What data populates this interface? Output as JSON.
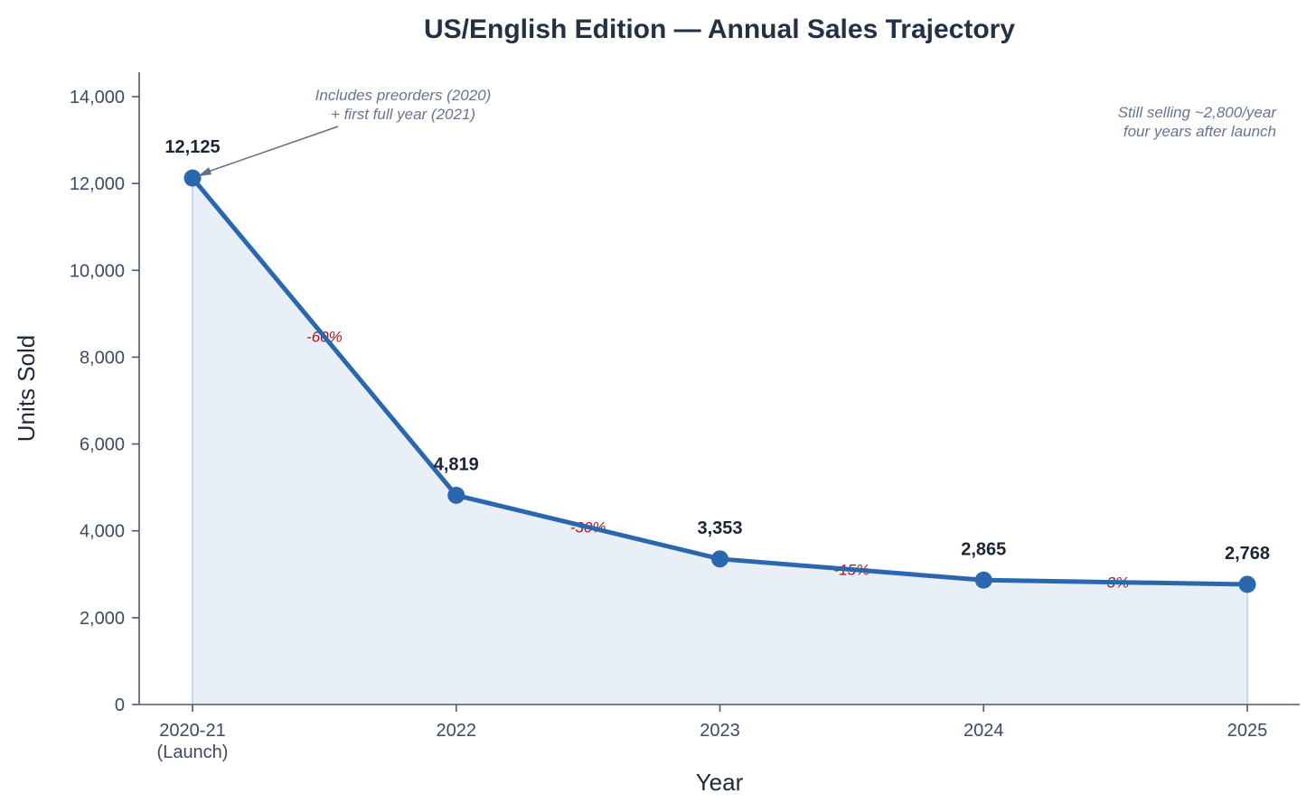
{
  "chart_data": {
    "type": "line",
    "title": "US/English Edition — Annual Sales Trajectory",
    "xlabel": "Year",
    "ylabel": "Units Sold",
    "categories": [
      [
        "2020-21",
        "(Launch)"
      ],
      [
        "2022"
      ],
      [
        "2023"
      ],
      [
        "2024"
      ],
      [
        "2025"
      ]
    ],
    "values": [
      12125,
      4819,
      3353,
      2865,
      2768
    ],
    "value_labels": [
      "12,125",
      "4,819",
      "3,353",
      "2,865",
      "2,768"
    ],
    "changes": [
      "-60%",
      "-30%",
      "-15%",
      "-3%"
    ],
    "ylim": [
      0,
      14500
    ],
    "yticks": [
      0,
      2000,
      4000,
      6000,
      8000,
      10000,
      12000,
      14000
    ],
    "ytick_labels": [
      "0",
      "2,000",
      "4,000",
      "6,000",
      "8,000",
      "10,000",
      "12,000",
      "14,000"
    ],
    "grid": false,
    "area_fill": true,
    "annotations": {
      "launch_note": [
        "Includes preorders (2020)",
        "+ first full year (2021)"
      ],
      "tail_note": [
        "Still selling ~2,800/year",
        "four years after launch"
      ]
    },
    "colors": {
      "line": "#2b67ae",
      "fill": "#e8eff7",
      "change_text": "#b0101e",
      "axis": "#4a5870",
      "title": "#243044"
    }
  }
}
